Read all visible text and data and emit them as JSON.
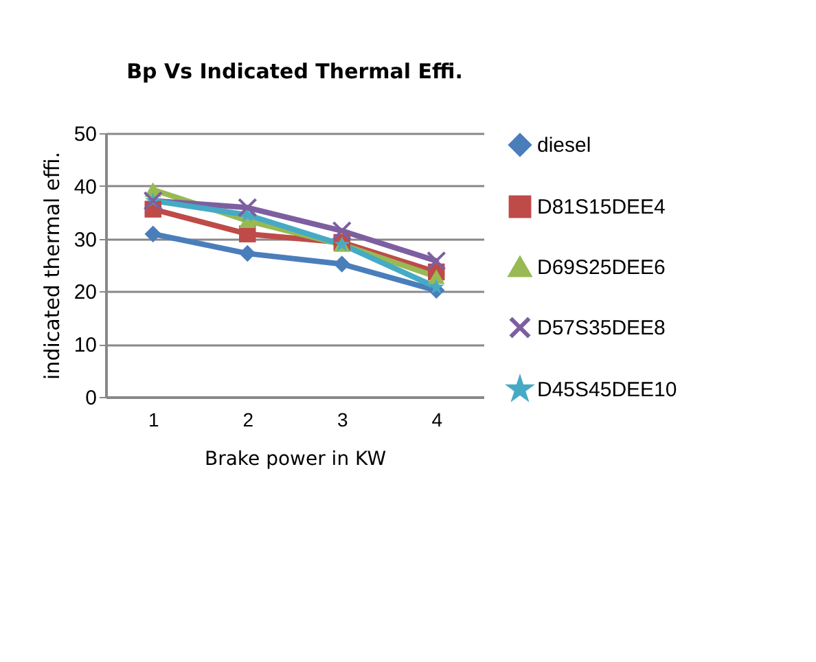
{
  "chart_data": {
    "type": "line",
    "title": "Bp Vs Indicated Thermal Effi.",
    "xlabel": "Brake power in KW",
    "ylabel": "indicated thermal effi.",
    "categories": [
      "1",
      "2",
      "3",
      "4"
    ],
    "series": [
      {
        "name": "diesel",
        "color": "#4a7ebb",
        "marker": "diamond",
        "values": [
          30.9,
          27.2,
          25.2,
          20.2
        ]
      },
      {
        "name": "D81S15DEE4",
        "color": "#be4b48",
        "marker": "square",
        "values": [
          35.6,
          30.9,
          29.3,
          23.7
        ]
      },
      {
        "name": "D69S25DEE6",
        "color": "#98b954",
        "marker": "triangle",
        "values": [
          39.3,
          33.4,
          28.9,
          22.8
        ]
      },
      {
        "name": "D57S35DEE8",
        "color": "#7d5fa0",
        "marker": "cross",
        "values": [
          37.2,
          35.9,
          31.5,
          25.8
        ]
      },
      {
        "name": "D45S45DEE10",
        "color": "#46aac5",
        "marker": "star",
        "values": [
          37.2,
          34.5,
          28.9,
          20.8
        ]
      }
    ],
    "ylim": [
      0,
      50
    ],
    "yticks": [
      0,
      10,
      20,
      30,
      40,
      50
    ],
    "grid": "y",
    "legend": "right"
  }
}
